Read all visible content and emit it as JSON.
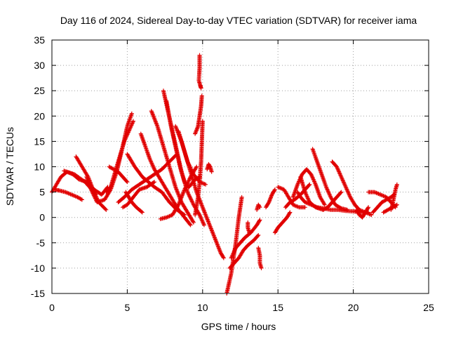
{
  "chart_data": {
    "type": "scatter",
    "title": "Day 116 of 2024, Sidereal Day-to-day VTEC variation (SDTVAR) for receiver iama",
    "xlabel": "GPS time / hours",
    "ylabel": "SDTVAR / TECUs",
    "xlim": [
      0,
      25
    ],
    "ylim": [
      -15,
      35
    ],
    "xticks": [
      0,
      5,
      10,
      15,
      20,
      25
    ],
    "yticks": [
      -15,
      -10,
      -5,
      0,
      5,
      10,
      15,
      20,
      25,
      30,
      35
    ],
    "grid": true,
    "marker": "+",
    "color": "#e00000",
    "tracks": [
      [
        [
          0.0,
          5.0
        ],
        [
          0.3,
          6.5
        ],
        [
          0.6,
          8.0
        ],
        [
          1.0,
          9.0
        ],
        [
          1.4,
          8.5
        ],
        [
          1.8,
          7.5
        ],
        [
          2.3,
          7.0
        ],
        [
          2.8,
          5.5
        ],
        [
          3.3,
          4.5
        ],
        [
          3.7,
          6.0
        ]
      ],
      [
        [
          0.2,
          5.5
        ],
        [
          0.5,
          5.3
        ],
        [
          0.9,
          5.0
        ],
        [
          1.3,
          4.5
        ],
        [
          1.7,
          4.0
        ],
        [
          2.0,
          3.5
        ]
      ],
      [
        [
          0.8,
          9.2
        ],
        [
          1.0,
          9.0
        ],
        [
          1.5,
          8.5
        ],
        [
          2.2,
          7.0
        ],
        [
          2.5,
          6.0
        ],
        [
          2.9,
          4.5
        ]
      ],
      [
        [
          1.6,
          12.0
        ],
        [
          2.0,
          10.0
        ],
        [
          2.4,
          8.0
        ],
        [
          2.8,
          5.0
        ],
        [
          3.1,
          3.0
        ],
        [
          3.6,
          1.5
        ]
      ],
      [
        [
          2.3,
          8.0
        ],
        [
          2.6,
          5.5
        ],
        [
          3.0,
          3.0
        ],
        [
          3.5,
          3.5
        ],
        [
          3.9,
          5.5
        ],
        [
          4.3,
          9.0
        ],
        [
          4.7,
          14.0
        ],
        [
          5.0,
          18.0
        ],
        [
          5.3,
          20.5
        ]
      ],
      [
        [
          3.6,
          5.0
        ],
        [
          3.9,
          6.0
        ],
        [
          4.2,
          9.0
        ],
        [
          4.5,
          12.0
        ],
        [
          4.8,
          15.0
        ],
        [
          5.1,
          17.0
        ],
        [
          5.4,
          19.0
        ]
      ],
      [
        [
          3.8,
          10.0
        ],
        [
          4.1,
          9.5
        ],
        [
          4.4,
          9.0
        ],
        [
          4.7,
          8.0
        ],
        [
          5.0,
          7.0
        ]
      ],
      [
        [
          4.4,
          3.0
        ],
        [
          4.8,
          4.0
        ],
        [
          5.3,
          5.5
        ],
        [
          5.8,
          6.5
        ],
        [
          6.3,
          7.5
        ],
        [
          6.8,
          8.5
        ],
        [
          7.3,
          9.5
        ],
        [
          7.8,
          11.0
        ],
        [
          8.3,
          12.5
        ]
      ],
      [
        [
          4.7,
          2.0
        ],
        [
          5.0,
          2.5
        ],
        [
          5.4,
          4.0
        ],
        [
          5.8,
          5.5
        ],
        [
          6.3,
          6.0
        ],
        [
          6.8,
          7.0
        ]
      ],
      [
        [
          4.9,
          5.0
        ],
        [
          5.1,
          4.0
        ],
        [
          5.3,
          3.0
        ],
        [
          5.6,
          2.0
        ],
        [
          6.0,
          1.0
        ]
      ],
      [
        [
          5.0,
          12.5
        ],
        [
          5.5,
          10.0
        ],
        [
          6.0,
          8.0
        ],
        [
          6.4,
          7.0
        ],
        [
          6.8,
          6.0
        ],
        [
          7.3,
          5.0
        ],
        [
          7.8,
          3.0
        ],
        [
          8.3,
          1.5
        ],
        [
          8.8,
          0.5
        ]
      ],
      [
        [
          5.9,
          16.5
        ],
        [
          6.2,
          14.0
        ],
        [
          6.5,
          11.5
        ],
        [
          6.8,
          9.5
        ],
        [
          7.2,
          7.5
        ],
        [
          7.6,
          5.5
        ],
        [
          8.0,
          3.5
        ],
        [
          8.4,
          1.5
        ],
        [
          8.8,
          0.0
        ],
        [
          9.2,
          -1.5
        ]
      ],
      [
        [
          6.6,
          21.0
        ],
        [
          7.0,
          18.0
        ],
        [
          7.4,
          14.0
        ],
        [
          7.8,
          10.0
        ],
        [
          8.2,
          6.0
        ],
        [
          8.6,
          3.0
        ],
        [
          9.0,
          1.0
        ],
        [
          9.4,
          -1.0
        ]
      ],
      [
        [
          7.4,
          25.0
        ],
        [
          7.7,
          21.0
        ],
        [
          8.0,
          17.0
        ],
        [
          8.3,
          13.0
        ],
        [
          8.6,
          9.0
        ],
        [
          9.0,
          5.0
        ],
        [
          9.4,
          2.5
        ],
        [
          9.8,
          0.5
        ],
        [
          10.1,
          -1.5
        ]
      ],
      [
        [
          7.2,
          -0.3
        ],
        [
          7.6,
          0.0
        ],
        [
          8.0,
          0.5
        ],
        [
          8.4,
          2.5
        ],
        [
          8.8,
          5.5
        ],
        [
          9.2,
          8.0
        ],
        [
          9.6,
          10.0
        ]
      ],
      [
        [
          7.6,
          23.0
        ],
        [
          7.9,
          18.0
        ],
        [
          8.2,
          14.0
        ],
        [
          8.5,
          10.0
        ],
        [
          8.8,
          7.0
        ],
        [
          9.1,
          6.0
        ],
        [
          9.5,
          7.5
        ],
        [
          9.8,
          8.0
        ]
      ],
      [
        [
          8.4,
          17.0
        ],
        [
          8.8,
          13.0
        ],
        [
          9.2,
          9.0
        ],
        [
          9.6,
          5.0
        ],
        [
          10.0,
          2.0
        ],
        [
          10.4,
          -1.0
        ],
        [
          10.8,
          -4.0
        ],
        [
          11.2,
          -7.0
        ],
        [
          11.4,
          -8.0
        ]
      ],
      [
        [
          8.2,
          18.0
        ],
        [
          8.6,
          15.0
        ],
        [
          9.0,
          11.0
        ],
        [
          9.4,
          8.5
        ],
        [
          9.8,
          7.0
        ],
        [
          10.2,
          6.5
        ]
      ],
      [
        [
          9.5,
          16.5
        ],
        [
          9.7,
          18.0
        ],
        [
          9.8,
          20.0
        ],
        [
          9.9,
          22.0
        ],
        [
          9.95,
          24.0
        ]
      ],
      [
        [
          9.5,
          0.5
        ],
        [
          9.7,
          4.0
        ],
        [
          9.8,
          7.0
        ],
        [
          9.9,
          11.0
        ],
        [
          9.95,
          15.0
        ],
        [
          10.0,
          19.0
        ]
      ],
      [
        [
          9.8,
          32.0
        ],
        [
          9.8,
          29.5
        ],
        [
          9.75,
          27.0
        ],
        [
          9.9,
          25.5
        ],
        [
          9.85,
          26.0
        ]
      ],
      [
        [
          10.3,
          9.5
        ],
        [
          10.4,
          10.5
        ],
        [
          10.5,
          10.0
        ],
        [
          10.6,
          9.0
        ]
      ],
      [
        [
          11.6,
          -15.0
        ],
        [
          11.9,
          -11.0
        ],
        [
          12.2,
          -5.0
        ],
        [
          12.4,
          0.0
        ],
        [
          12.6,
          4.0
        ]
      ],
      [
        [
          11.9,
          -8.0
        ],
        [
          12.2,
          -6.0
        ],
        [
          12.5,
          -5.0
        ],
        [
          12.8,
          -4.0
        ],
        [
          13.2,
          -3.0
        ],
        [
          13.6,
          -1.5
        ],
        [
          13.8,
          -0.5
        ]
      ],
      [
        [
          11.8,
          -10.0
        ],
        [
          12.1,
          -9.0
        ],
        [
          12.4,
          -8.0
        ],
        [
          12.7,
          -6.5
        ],
        [
          13.0,
          -5.5
        ],
        [
          13.4,
          -4.5
        ],
        [
          13.7,
          -3.5
        ]
      ],
      [
        [
          13.0,
          -1.0
        ],
        [
          13.0,
          -2.0
        ],
        [
          13.1,
          -3.0
        ]
      ],
      [
        [
          13.7,
          -6.0
        ],
        [
          13.8,
          -7.5
        ],
        [
          13.8,
          -9.0
        ],
        [
          13.9,
          -10.0
        ]
      ],
      [
        [
          13.6,
          1.5
        ],
        [
          13.7,
          2.5
        ],
        [
          13.8,
          2.0
        ]
      ],
      [
        [
          14.2,
          2.0
        ],
        [
          14.4,
          3.0
        ],
        [
          14.6,
          4.5
        ],
        [
          14.8,
          5.5
        ]
      ],
      [
        [
          14.8,
          -3.0
        ],
        [
          15.0,
          -2.0
        ],
        [
          15.3,
          -1.0
        ],
        [
          15.6,
          0.0
        ],
        [
          15.8,
          1.0
        ]
      ],
      [
        [
          15.0,
          6.0
        ],
        [
          15.4,
          5.5
        ],
        [
          15.7,
          4.0
        ],
        [
          16.0,
          2.5
        ],
        [
          16.4,
          2.0
        ],
        [
          16.8,
          2.0
        ]
      ],
      [
        [
          15.5,
          2.0
        ],
        [
          15.8,
          3.0
        ],
        [
          16.1,
          3.5
        ],
        [
          16.5,
          4.5
        ],
        [
          16.8,
          5.5
        ],
        [
          17.1,
          6.5
        ]
      ],
      [
        [
          16.0,
          4.0
        ],
        [
          16.3,
          6.5
        ],
        [
          16.6,
          8.5
        ],
        [
          16.9,
          9.5
        ],
        [
          17.2,
          8.5
        ],
        [
          17.5,
          6.5
        ],
        [
          17.8,
          4.0
        ],
        [
          18.1,
          2.5
        ]
      ],
      [
        [
          16.3,
          5.0
        ],
        [
          16.5,
          4.0
        ],
        [
          16.8,
          3.0
        ],
        [
          17.2,
          2.5
        ],
        [
          17.6,
          2.0
        ],
        [
          18.0,
          1.8
        ],
        [
          18.5,
          1.5
        ],
        [
          19.0,
          1.5
        ],
        [
          19.5,
          1.3
        ],
        [
          20.0,
          1.2
        ],
        [
          20.5,
          1.0
        ],
        [
          21.0,
          1.0
        ]
      ],
      [
        [
          16.5,
          8.0
        ],
        [
          16.8,
          5.0
        ],
        [
          17.1,
          3.0
        ],
        [
          17.5,
          2.0
        ],
        [
          18.0,
          1.5
        ]
      ],
      [
        [
          17.3,
          13.5
        ],
        [
          17.6,
          11.0
        ],
        [
          17.9,
          8.5
        ],
        [
          18.2,
          6.0
        ],
        [
          18.5,
          4.0
        ],
        [
          18.8,
          2.5
        ],
        [
          19.2,
          1.8
        ],
        [
          19.6,
          1.5
        ]
      ],
      [
        [
          18.0,
          1.5
        ],
        [
          18.3,
          2.0
        ],
        [
          18.6,
          3.0
        ],
        [
          18.9,
          4.0
        ],
        [
          19.2,
          5.0
        ]
      ],
      [
        [
          18.6,
          11.0
        ],
        [
          18.9,
          10.0
        ],
        [
          19.2,
          8.0
        ],
        [
          19.5,
          6.0
        ],
        [
          19.8,
          4.0
        ],
        [
          20.1,
          2.5
        ],
        [
          20.4,
          1.5
        ],
        [
          20.8,
          1.0
        ],
        [
          21.2,
          0.5
        ]
      ],
      [
        [
          20.2,
          1.5
        ],
        [
          20.4,
          0.5
        ],
        [
          20.6,
          0.0
        ],
        [
          20.8,
          1.0
        ],
        [
          21.0,
          2.0
        ]
      ],
      [
        [
          21.0,
          5.0
        ],
        [
          21.4,
          5.0
        ],
        [
          21.8,
          4.5
        ],
        [
          22.2,
          4.0
        ],
        [
          22.5,
          3.0
        ],
        [
          22.8,
          2.0
        ]
      ],
      [
        [
          21.3,
          1.0
        ],
        [
          21.6,
          2.0
        ],
        [
          21.9,
          3.0
        ],
        [
          22.2,
          3.5
        ],
        [
          22.5,
          4.0
        ],
        [
          22.7,
          4.5
        ]
      ],
      [
        [
          22.5,
          1.5
        ],
        [
          22.6,
          2.5
        ],
        [
          22.7,
          4.0
        ],
        [
          22.8,
          5.5
        ],
        [
          22.9,
          6.5
        ]
      ],
      [
        [
          22.0,
          1.0
        ],
        [
          22.3,
          1.5
        ],
        [
          22.6,
          2.0
        ],
        [
          22.9,
          2.5
        ]
      ]
    ]
  }
}
